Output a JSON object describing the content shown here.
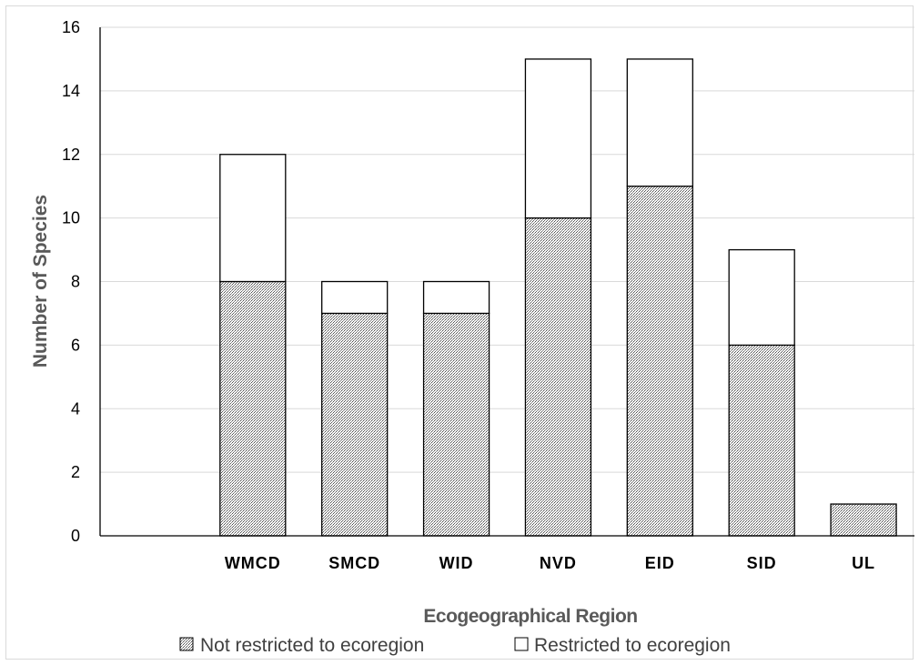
{
  "chart_data": {
    "type": "bar",
    "stacked": true,
    "categories": [
      "",
      "WMCD",
      "SMCD",
      "WID",
      "NVD",
      "EID",
      "SID",
      "UL"
    ],
    "series": [
      {
        "name": "Not restricted to ecoregion",
        "values": [
          0,
          8,
          7,
          7,
          10,
          11,
          6,
          1
        ],
        "fill": "hatch"
      },
      {
        "name": "Restricted to ecoregion",
        "values": [
          0,
          4,
          1,
          1,
          5,
          4,
          3,
          0
        ],
        "fill": "#ffffff"
      }
    ],
    "xlabel": "Ecogeographical Region",
    "ylabel": "Number of Species",
    "ylim": [
      0,
      16
    ],
    "yticks": [
      0,
      2,
      4,
      6,
      8,
      10,
      12,
      14,
      16
    ],
    "grid": true,
    "legend_position": "bottom"
  }
}
